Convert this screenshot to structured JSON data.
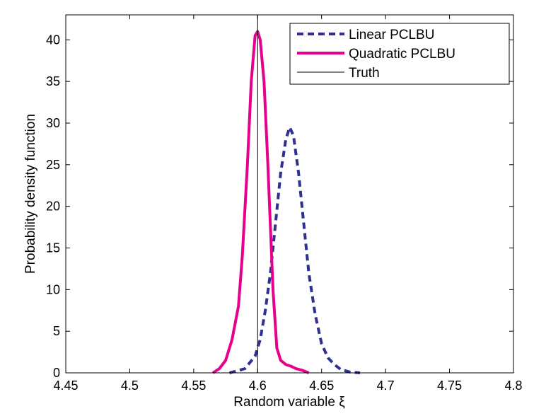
{
  "chart_data": {
    "type": "line",
    "title": "",
    "xlabel": "Random variable ξ",
    "ylabel": "Probability density function",
    "xlim": [
      4.45,
      4.8
    ],
    "ylim": [
      0,
      43
    ],
    "xticks": [
      4.45,
      4.5,
      4.55,
      4.6,
      4.65,
      4.7,
      4.75,
      4.8
    ],
    "xtick_labels": [
      "4.45",
      "4.5",
      "4.55",
      "4.6",
      "4.65",
      "4.7",
      "4.75",
      "4.8"
    ],
    "yticks": [
      0,
      5,
      10,
      15,
      20,
      25,
      30,
      35,
      40
    ],
    "ytick_labels": [
      "0",
      "5",
      "10",
      "15",
      "20",
      "25",
      "30",
      "35",
      "40"
    ],
    "grid": false,
    "legend_position": "top-right",
    "series": [
      {
        "name": "Linear PCLBU",
        "style": "dashed",
        "color": "#2e3192",
        "x": [
          4.578,
          4.59,
          4.598,
          4.602,
          4.606,
          4.61,
          4.614,
          4.618,
          4.622,
          4.625,
          4.628,
          4.632,
          4.636,
          4.64,
          4.645,
          4.65,
          4.655,
          4.66,
          4.665,
          4.672,
          4.68
        ],
        "y": [
          0,
          0.5,
          2,
          4,
          7.5,
          12,
          18,
          24,
          28,
          29.5,
          28.5,
          24,
          18,
          12,
          7,
          3.5,
          1.8,
          1,
          0.4,
          0.1,
          0
        ]
      },
      {
        "name": "Quadratic PCLBU",
        "style": "solid",
        "color": "#e6008c",
        "x": [
          4.565,
          4.57,
          4.575,
          4.58,
          4.585,
          4.588,
          4.592,
          4.595,
          4.598,
          4.6,
          4.602,
          4.605,
          4.608,
          4.612,
          4.615,
          4.618,
          4.622,
          4.626,
          4.63,
          4.635,
          4.64
        ],
        "y": [
          0,
          0.5,
          1.5,
          4,
          8,
          14,
          25,
          35,
          40.5,
          41,
          40,
          35,
          25,
          10,
          3,
          1.5,
          1,
          0.8,
          0.5,
          0.3,
          0
        ]
      },
      {
        "name": "Truth",
        "style": "solid-thin",
        "color": "#000000",
        "x": [
          4.6,
          4.6
        ],
        "y": [
          0,
          43
        ]
      }
    ]
  }
}
